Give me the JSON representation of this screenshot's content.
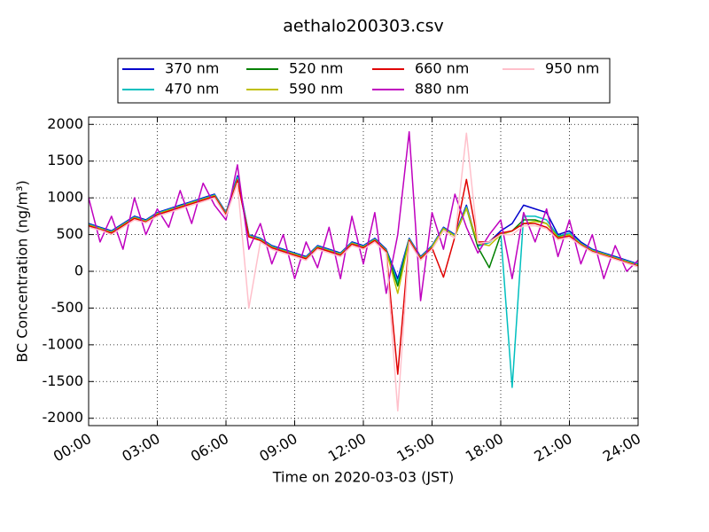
{
  "chart_data": {
    "type": "line",
    "title": "aethalo200303.csv",
    "xlabel": "Time on 2020-03-03 (JST)",
    "ylabel": "BC Concentration (ng/m³)",
    "x": [
      0,
      0.5,
      1,
      1.5,
      2,
      2.5,
      3,
      3.5,
      4,
      4.5,
      5,
      5.5,
      6,
      6.5,
      7,
      7.5,
      8,
      8.5,
      9,
      9.5,
      10,
      10.5,
      11,
      11.5,
      12,
      12.5,
      13,
      13.5,
      14,
      14.5,
      15,
      15.5,
      16,
      16.5,
      17,
      17.5,
      18,
      18.5,
      19,
      19.5,
      20,
      20.5,
      21,
      21.5,
      22,
      22.5,
      23,
      23.5,
      24
    ],
    "xlim": [
      0,
      24
    ],
    "ylim": [
      -2100,
      2100
    ],
    "xticks": [
      {
        "value": 0,
        "label": "00:00"
      },
      {
        "value": 3,
        "label": "03:00"
      },
      {
        "value": 6,
        "label": "06:00"
      },
      {
        "value": 9,
        "label": "09:00"
      },
      {
        "value": 12,
        "label": "12:00"
      },
      {
        "value": 15,
        "label": "15:00"
      },
      {
        "value": 18,
        "label": "18:00"
      },
      {
        "value": 21,
        "label": "21:00"
      },
      {
        "value": 24,
        "label": "24:00"
      }
    ],
    "yticks": [
      -2000,
      -1500,
      -1000,
      -500,
      0,
      500,
      1000,
      1500,
      2000
    ],
    "grid": true,
    "legend": "top",
    "series": [
      {
        "name": "370 nm",
        "color": "#0000cc",
        "values": [
          650,
          600,
          550,
          650,
          750,
          700,
          800,
          850,
          900,
          950,
          1000,
          1050,
          800,
          1300,
          500,
          450,
          350,
          300,
          250,
          200,
          350,
          300,
          250,
          400,
          350,
          450,
          300,
          -100,
          450,
          200,
          350,
          600,
          500,
          900,
          350,
          400,
          550,
          650,
          900,
          850,
          800,
          500,
          550,
          400,
          300,
          250,
          200,
          150,
          100
        ]
      },
      {
        "name": "470 nm",
        "color": "#00bfbf",
        "values": [
          640,
          590,
          540,
          640,
          740,
          690,
          790,
          840,
          890,
          940,
          990,
          1040,
          790,
          1280,
          490,
          440,
          340,
          290,
          240,
          190,
          340,
          290,
          240,
          390,
          340,
          440,
          290,
          -150,
          440,
          190,
          340,
          590,
          490,
          880,
          340,
          390,
          520,
          -1580,
          750,
          750,
          700,
          480,
          520,
          380,
          290,
          240,
          190,
          140,
          90
        ]
      },
      {
        "name": "520 nm",
        "color": "#008000",
        "values": [
          630,
          580,
          530,
          630,
          730,
          680,
          780,
          830,
          880,
          930,
          980,
          1030,
          780,
          1250,
          480,
          430,
          330,
          280,
          230,
          180,
          330,
          280,
          230,
          380,
          330,
          430,
          280,
          -200,
          430,
          180,
          330,
          580,
          480,
          860,
          330,
          50,
          500,
          550,
          700,
          700,
          650,
          470,
          500,
          370,
          280,
          230,
          180,
          130,
          80
        ]
      },
      {
        "name": "590 nm",
        "color": "#bfbf00",
        "values": [
          630,
          580,
          530,
          630,
          730,
          680,
          780,
          830,
          880,
          930,
          980,
          1030,
          780,
          1250,
          480,
          430,
          330,
          280,
          230,
          180,
          330,
          280,
          230,
          380,
          330,
          430,
          280,
          -300,
          430,
          180,
          330,
          580,
          480,
          860,
          380,
          350,
          500,
          550,
          650,
          680,
          650,
          460,
          500,
          370,
          280,
          230,
          180,
          130,
          80
        ]
      },
      {
        "name": "660 nm",
        "color": "#e00000",
        "values": [
          620,
          570,
          520,
          620,
          720,
          670,
          770,
          820,
          870,
          920,
          970,
          1020,
          770,
          1240,
          470,
          420,
          320,
          270,
          220,
          170,
          320,
          270,
          220,
          370,
          320,
          420,
          270,
          -1400,
          420,
          170,
          320,
          -80,
          470,
          1250,
          400,
          400,
          520,
          550,
          650,
          650,
          600,
          450,
          480,
          360,
          270,
          220,
          170,
          120,
          70
        ]
      },
      {
        "name": "880 nm",
        "color": "#bf00bf",
        "values": [
          1000,
          400,
          750,
          300,
          1000,
          500,
          850,
          600,
          1100,
          650,
          1200,
          900,
          700,
          1450,
          300,
          650,
          100,
          500,
          -100,
          400,
          50,
          600,
          -100,
          750,
          100,
          800,
          -300,
          500,
          1900,
          -400,
          800,
          300,
          1050,
          600,
          250,
          500,
          700,
          -100,
          800,
          400,
          850,
          200,
          700,
          100,
          500,
          -100,
          350,
          0,
          150
        ]
      },
      {
        "name": "950 nm",
        "color": "#ffc0cb",
        "values": [
          600,
          560,
          500,
          600,
          700,
          660,
          750,
          800,
          850,
          900,
          950,
          1000,
          750,
          1200,
          -500,
          400,
          300,
          250,
          200,
          150,
          300,
          250,
          200,
          350,
          300,
          400,
          250,
          -1900,
          400,
          150,
          300,
          550,
          450,
          1880,
          380,
          400,
          500,
          500,
          620,
          620,
          580,
          430,
          460,
          350,
          260,
          210,
          160,
          110,
          60
        ]
      }
    ]
  }
}
